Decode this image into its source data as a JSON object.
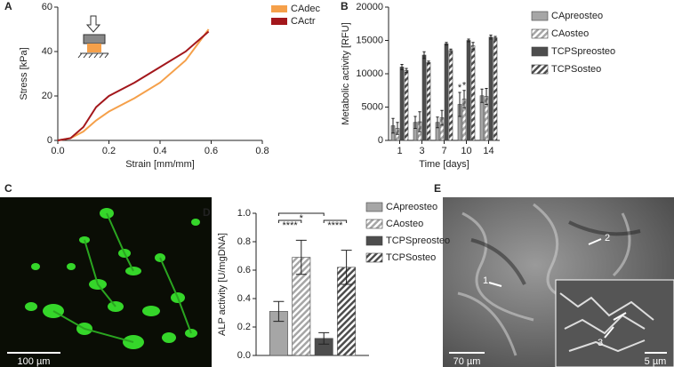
{
  "chart_data": [
    {
      "type": "line",
      "panel_label": "A",
      "x_label": "Strain [mm/mm]",
      "y_label": "Stress [kPa]",
      "x": [
        0,
        0.05,
        0.1,
        0.15,
        0.2,
        0.3,
        0.4,
        0.5,
        0.59
      ],
      "series": [
        {
          "name": "CAdec",
          "color": "#f5a04a",
          "values": [
            0,
            1,
            4,
            9,
            13,
            19,
            26,
            36,
            50
          ]
        },
        {
          "name": "CActr",
          "color": "#a3171c",
          "values": [
            0,
            1,
            6,
            15,
            20,
            26,
            33,
            40,
            49
          ]
        }
      ],
      "xlim": [
        0,
        0.8
      ],
      "xticks": [
        {
          "value": 0,
          "label": "0.0"
        },
        0.2,
        0.4,
        0.6,
        0.8
      ],
      "ylim": [
        0,
        60
      ],
      "yticks": [
        0,
        20,
        40,
        60
      ]
    },
    {
      "type": "bar",
      "panel_label": "B",
      "x_label": "Time [days]",
      "y_label": "Metabolic activity [RFU]",
      "categories": [
        "1",
        "3",
        "7",
        "10",
        "14"
      ],
      "series": [
        {
          "name": "CApreosteo",
          "color": "#a6a6a6",
          "hatch": false,
          "values": [
            2200,
            2700,
            2700,
            5400,
            6700
          ],
          "errors": [
            1100,
            900,
            800,
            1800,
            1000
          ]
        },
        {
          "name": "CAosteo",
          "color": "#a6a6a6",
          "hatch": true,
          "values": [
            1800,
            2800,
            3400,
            6200,
            6600
          ],
          "errors": [
            900,
            1500,
            1100,
            1300,
            1200
          ]
        },
        {
          "name": "TCPSpreosteo",
          "color": "#4d4d4d",
          "hatch": false,
          "values": [
            11000,
            12800,
            14500,
            15000,
            15500
          ],
          "errors": [
            400,
            500,
            200,
            200,
            300
          ]
        },
        {
          "name": "TCPSosteo",
          "color": "#4d4d4d",
          "hatch": true,
          "values": [
            10500,
            11700,
            13500,
            14200,
            15400
          ],
          "errors": [
            300,
            200,
            200,
            500,
            200
          ]
        }
      ],
      "annotations": [
        {
          "text": "*",
          "series": 0,
          "category": 3
        },
        {
          "text": "*",
          "series": 1,
          "category": 3
        }
      ],
      "ylim": [
        0,
        20000
      ],
      "yticks": [
        0,
        5000,
        10000,
        15000,
        20000
      ]
    },
    {
      "type": "bar",
      "panel_label": "D",
      "y_label": "ALP activity [U/mgDNA]",
      "categories": [
        null
      ],
      "series": [
        {
          "name": "CApreosteo",
          "color": "#a6a6a6",
          "hatch": false,
          "values": [
            0.31
          ],
          "errors": [
            0.07
          ]
        },
        {
          "name": "CAosteo",
          "color": "#a6a6a6",
          "hatch": true,
          "values": [
            0.69
          ],
          "errors": [
            0.12
          ]
        },
        {
          "name": "TCPSpreosteo",
          "color": "#4d4d4d",
          "hatch": false,
          "values": [
            0.12
          ],
          "errors": [
            0.04
          ]
        },
        {
          "name": "TCPSosteo",
          "color": "#4d4d4d",
          "hatch": true,
          "values": [
            0.62
          ],
          "errors": [
            0.12
          ]
        }
      ],
      "significance": [
        {
          "from": 0,
          "to": 1,
          "label": "****"
        },
        {
          "from": 0,
          "to": 2,
          "label": "*"
        },
        {
          "from": 2,
          "to": 3,
          "label": "****"
        }
      ],
      "ylim": [
        0,
        1
      ],
      "yticks": [
        {
          "value": 0,
          "label": "0.0"
        },
        0.2,
        0.4,
        0.6,
        0.8,
        {
          "value": 1,
          "label": "1.0"
        }
      ]
    }
  ],
  "images": [
    {
      "panel_label": "C",
      "scale_bar": "100 µm"
    },
    {
      "panel_label": "E",
      "scale_bar": "70 µm",
      "inset_scale_bar": "5 µm",
      "arrows": [
        "1",
        "2",
        "3"
      ]
    }
  ]
}
